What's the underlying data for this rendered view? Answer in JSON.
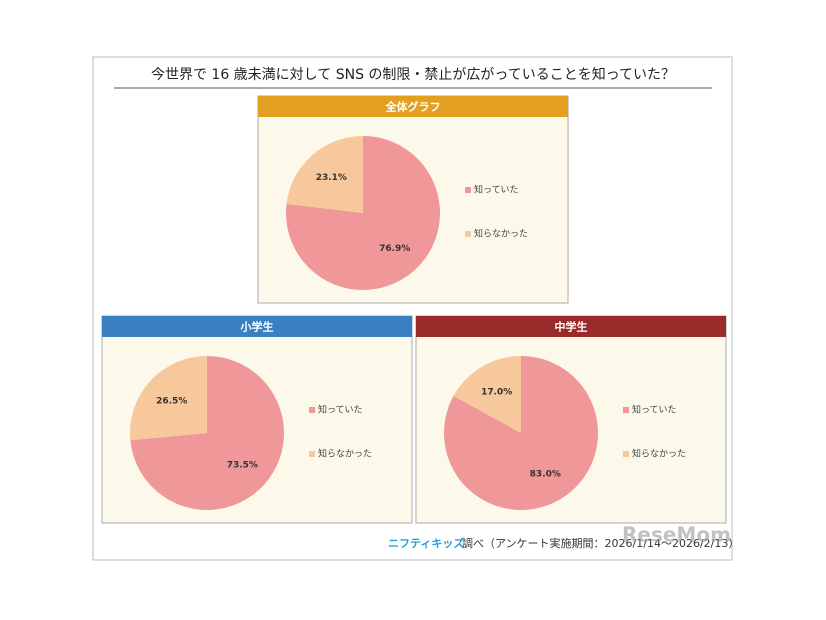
{
  "title": "今世界で 16 歳未満に対して SNS の制限・禁止が広がっていることを知っていた？",
  "source_brand": "ニフティキッズ",
  "source_text": "調べ（アンケート実施期間：2026/1/14～2026/2/13）",
  "watermark": "ReseMom",
  "chart_data": [
    {
      "type": "pie",
      "title": "全体グラフ",
      "header_color": "#e3a020",
      "categories": [
        "知っていた",
        "知らなかった"
      ],
      "values": [
        76.9,
        23.1
      ],
      "value_labels": [
        "76.9%",
        "23.1%"
      ],
      "colors": [
        "#f0979a",
        "#f6c89b"
      ]
    },
    {
      "type": "pie",
      "title": "小学生",
      "header_color": "#3a7fc1",
      "categories": [
        "知っていた",
        "知らなかった"
      ],
      "values": [
        73.5,
        26.5
      ],
      "value_labels": [
        "73.5%",
        "26.5%"
      ],
      "colors": [
        "#f0979a",
        "#f6c89b"
      ]
    },
    {
      "type": "pie",
      "title": "中学生",
      "header_color": "#9b2a2a",
      "categories": [
        "知っていた",
        "知らなかった"
      ],
      "values": [
        83.0,
        17.0
      ],
      "value_labels": [
        "83.0%",
        "17.0%"
      ],
      "colors": [
        "#f0979a",
        "#f6c89b"
      ]
    }
  ]
}
